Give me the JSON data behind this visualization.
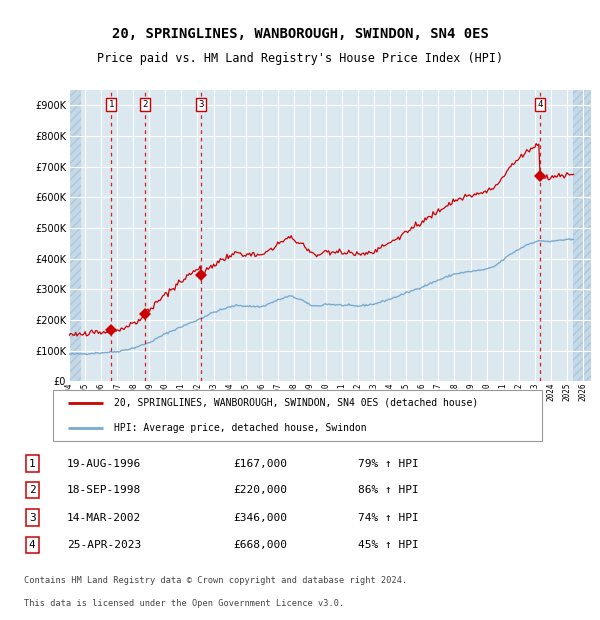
{
  "title": "20, SPRINGLINES, WANBOROUGH, SWINDON, SN4 0ES",
  "subtitle": "Price paid vs. HM Land Registry's House Price Index (HPI)",
  "transactions": [
    {
      "num": 1,
      "date": "1996-08-19",
      "price": 167000
    },
    {
      "num": 2,
      "date": "1998-09-18",
      "price": 220000
    },
    {
      "num": 3,
      "date": "2002-03-14",
      "price": 346000
    },
    {
      "num": 4,
      "date": "2023-04-25",
      "price": 668000
    }
  ],
  "table_rows": [
    {
      "num": 1,
      "date": "19-AUG-1996",
      "price": "£167,000",
      "hpi": "79% ↑ HPI"
    },
    {
      "num": 2,
      "date": "18-SEP-1998",
      "price": "£220,000",
      "hpi": "86% ↑ HPI"
    },
    {
      "num": 3,
      "date": "14-MAR-2002",
      "price": "£346,000",
      "hpi": "74% ↑ HPI"
    },
    {
      "num": 4,
      "date": "25-APR-2023",
      "price": "£668,000",
      "hpi": "45% ↑ HPI"
    }
  ],
  "legend1": "20, SPRINGLINES, WANBOROUGH, SWINDON, SN4 0ES (detached house)",
  "legend2": "HPI: Average price, detached house, Swindon",
  "footer_line1": "Contains HM Land Registry data © Crown copyright and database right 2024.",
  "footer_line2": "This data is licensed under the Open Government Licence v3.0.",
  "property_color": "#cc0000",
  "hpi_color": "#7aaad0",
  "background_chart": "#dce8f0",
  "background_hatch": "#c5d8e8",
  "grid_color": "#ffffff",
  "xmin": 1994.0,
  "xmax": 2026.5,
  "ymin": 0,
  "ymax": 950000,
  "yticks": [
    0,
    100000,
    200000,
    300000,
    400000,
    500000,
    600000,
    700000,
    800000,
    900000
  ],
  "hatch_left_end": 1994.75,
  "hatch_right_start": 2025.4,
  "trans_times": [
    1996.625,
    1998.708,
    2002.208,
    2023.333
  ],
  "trans_prices": [
    167000,
    220000,
    346000,
    668000
  ],
  "trans_nums": [
    1,
    2,
    3,
    4
  ]
}
